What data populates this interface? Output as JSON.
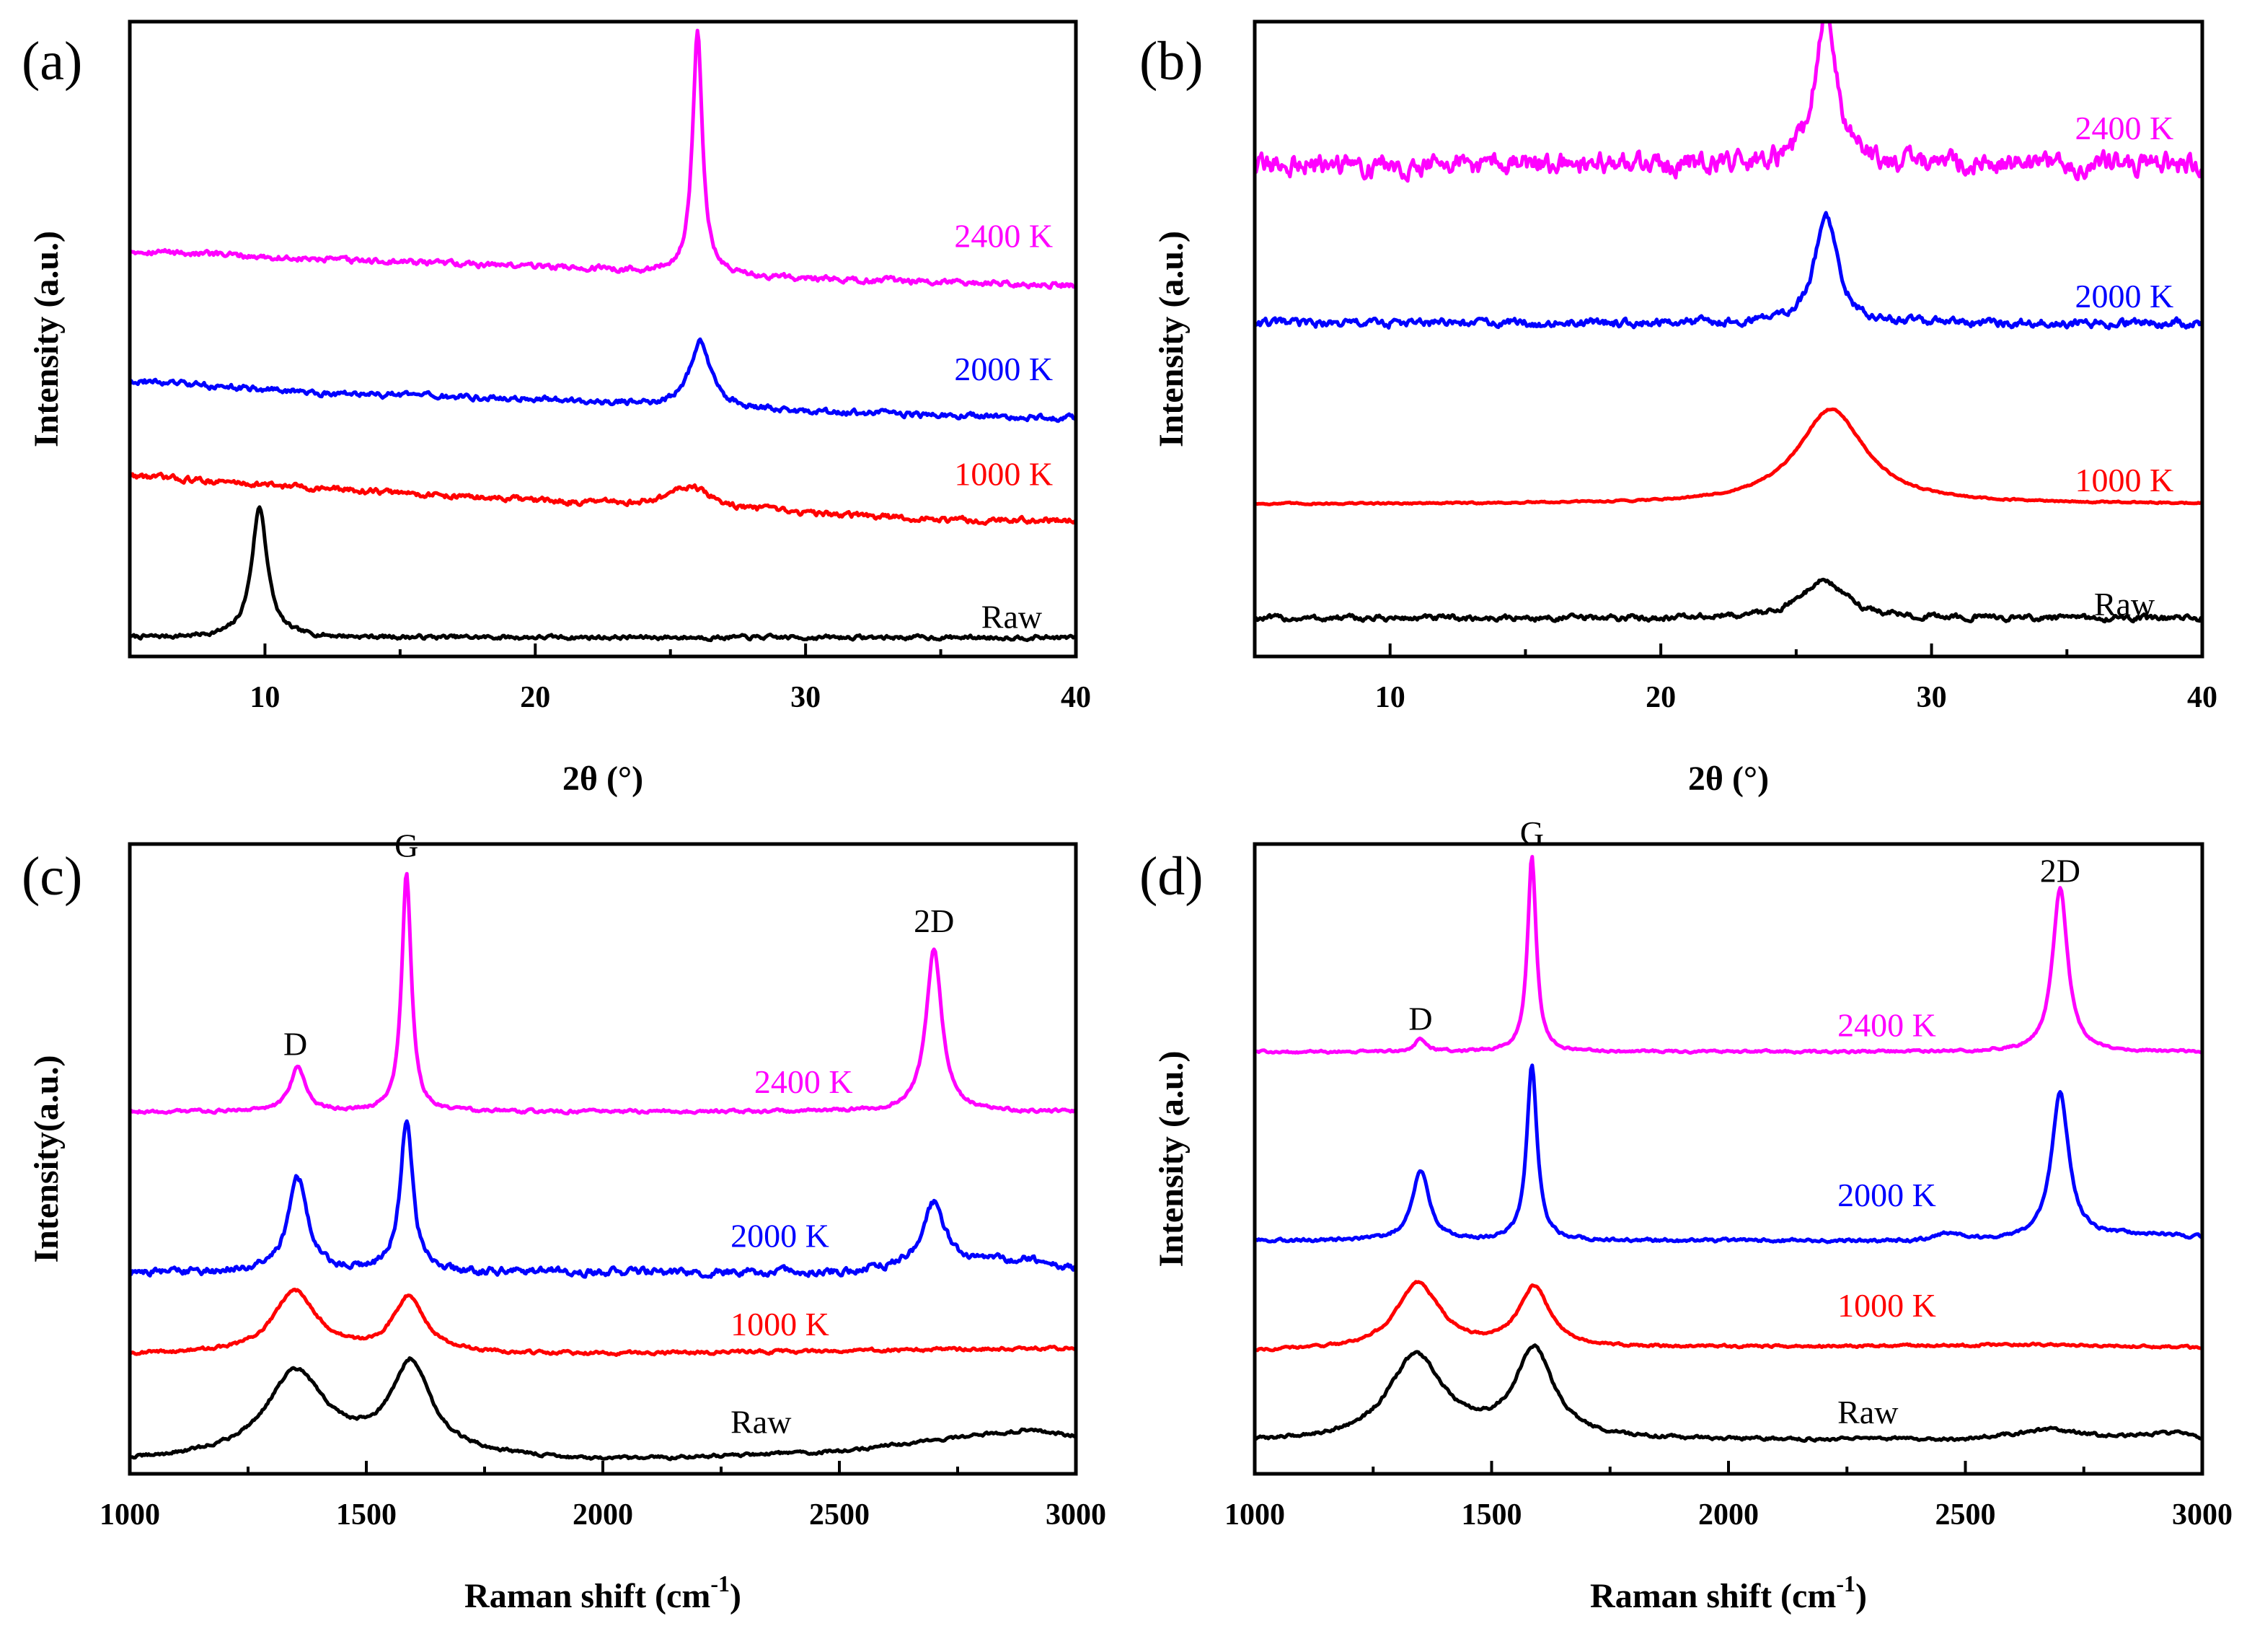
{
  "colors": {
    "Raw": "#000000",
    "1000 K": "#ff0000",
    "2000 K": "#0000ff",
    "2400 K": "#ff00ff"
  },
  "chart_data": [
    {
      "id": "a",
      "type": "line",
      "panel_label": "(a)",
      "xlabel": "2θ (°)",
      "ylabel": "Intensity (a.u.)",
      "xlim": [
        5,
        40
      ],
      "xticks": [
        10,
        20,
        30,
        40
      ],
      "ylim": [
        0,
        100
      ],
      "yticks_shown": false,
      "series": [
        {
          "name": "Raw",
          "offset": 3,
          "base": [
            [
              5,
              0
            ],
            [
              40,
              0
            ]
          ],
          "peaks": [
            {
              "x": 9.8,
              "h": 20.5,
              "w": 0.35
            }
          ],
          "noise": 0.25
        },
        {
          "name": "1000 K",
          "offset": 21.5,
          "base": [
            [
              5,
              7
            ],
            [
              12,
              5
            ],
            [
              20,
              3
            ],
            [
              30,
              1
            ],
            [
              35,
              0
            ],
            [
              40,
              0
            ]
          ],
          "peaks": [
            {
              "x": 25.7,
              "h": 3.5,
              "w": 0.9
            }
          ],
          "noise": 0.35
        },
        {
          "name": "2000 K",
          "offset": 37.5,
          "base": [
            [
              5,
              6
            ],
            [
              12,
              4
            ],
            [
              20,
              3
            ],
            [
              30,
              1
            ],
            [
              40,
              0
            ]
          ],
          "peaks": [
            {
              "x": 26.1,
              "h": 10.5,
              "w": 0.45
            }
          ],
          "noise": 0.35
        },
        {
          "name": "2400 K",
          "offset": 58.5,
          "base": [
            [
              5,
              5.5
            ],
            [
              12,
              4
            ],
            [
              20,
              3
            ],
            [
              30,
              1
            ],
            [
              40,
              0
            ]
          ],
          "peaks": [
            {
              "x": 26.0,
              "h": 38,
              "w": 0.22
            }
          ],
          "noise": 0.35
        }
      ],
      "labels": [
        {
          "series": "2400 K",
          "text": "2400 K",
          "x": 35.5,
          "y": 64.5
        },
        {
          "series": "2000 K",
          "text": "2000 K",
          "x": 35.5,
          "y": 43.5
        },
        {
          "series": "1000 K",
          "text": "1000 K",
          "x": 35.5,
          "y": 27
        },
        {
          "series": "Raw",
          "text": "Raw",
          "x": 36.5,
          "y": 4.5
        }
      ]
    },
    {
      "id": "b",
      "type": "line",
      "panel_label": "(b)",
      "xlabel": "2θ (°)",
      "ylabel": "Intensity (a.u.)",
      "xlim": [
        5,
        40
      ],
      "xticks": [
        10,
        20,
        30,
        40
      ],
      "ylim": [
        0,
        100
      ],
      "yticks_shown": false,
      "series": [
        {
          "name": "Raw",
          "offset": 6,
          "base": [
            [
              5,
              0
            ],
            [
              40,
              0
            ]
          ],
          "peaks": [
            {
              "x": 26.0,
              "h": 6,
              "w": 1.0
            }
          ],
          "noise": 0.35
        },
        {
          "name": "1000 K",
          "offset": 24,
          "base": [
            [
              5,
              0
            ],
            [
              40,
              0
            ]
          ],
          "peaks": [
            {
              "x": 26.3,
              "h": 15,
              "w": 1.5
            }
          ],
          "noise": 0.1
        },
        {
          "name": "2000 K",
          "offset": 52.5,
          "base": [
            [
              5,
              0
            ],
            [
              40,
              0
            ]
          ],
          "peaks": [
            {
              "x": 26.1,
              "h": 17,
              "w": 0.5
            }
          ],
          "noise": 0.5
        },
        {
          "name": "2400 K",
          "offset": 77.5,
          "base": [
            [
              5,
              0
            ],
            [
              40,
              0
            ]
          ],
          "peaks": [
            {
              "x": 26.1,
              "h": 25,
              "w": 0.45
            }
          ],
          "noise": 1.3
        }
      ],
      "labels": [
        {
          "series": "2400 K",
          "text": "2400 K",
          "x": 35.3,
          "y": 81.5
        },
        {
          "series": "2000 K",
          "text": "2000 K",
          "x": 35.3,
          "y": 55
        },
        {
          "series": "1000 K",
          "text": "1000 K",
          "x": 35.3,
          "y": 26
        },
        {
          "series": "Raw",
          "text": "Raw",
          "x": 36.0,
          "y": 6.5
        }
      ]
    },
    {
      "id": "c",
      "type": "line",
      "panel_label": "(c)",
      "xlabel": "Raman shift (cm",
      "xlabel_sup": "-1",
      "xlabel_end": ")",
      "ylabel": "Intensity(a.u.)",
      "xlim": [
        1000,
        3000
      ],
      "xticks": [
        1000,
        1500,
        2000,
        2500,
        3000
      ],
      "ylim": [
        0,
        100
      ],
      "yticks_shown": false,
      "series": [
        {
          "name": "Raw",
          "offset": 2,
          "base": [
            [
              1000,
              0
            ],
            [
              1500,
              1.5
            ],
            [
              2000,
              0
            ],
            [
              2500,
              1.5
            ],
            [
              2900,
              5
            ],
            [
              3000,
              4
            ]
          ],
          "peaks": [
            {
              "x": 1350,
              "h": 13,
              "w": 75
            },
            {
              "x": 1595,
              "h": 14,
              "w": 50
            }
          ],
          "noise": 0.2
        },
        {
          "name": "1000 K",
          "offset": 19,
          "base": [
            [
              1000,
              0
            ],
            [
              2000,
              0
            ],
            [
              3000,
              1
            ]
          ],
          "peaks": [
            {
              "x": 1350,
              "h": 10,
              "w": 55
            },
            {
              "x": 1590,
              "h": 9,
              "w": 40
            }
          ],
          "noise": 0.2
        },
        {
          "name": "2000 K",
          "offset": 32,
          "base": [
            [
              1000,
              0
            ],
            [
              2500,
              0
            ],
            [
              2900,
              2
            ],
            [
              3000,
              0.5
            ]
          ],
          "peaks": [
            {
              "x": 1355,
              "h": 15,
              "w": 25
            },
            {
              "x": 1585,
              "h": 24,
              "w": 16
            },
            {
              "x": 2700,
              "h": 10,
              "w": 28
            }
          ],
          "noise": 0.45
        },
        {
          "name": "2400 K",
          "offset": 57.5,
          "base": [
            [
              1000,
              0
            ],
            [
              3000,
              0
            ]
          ],
          "peaks": [
            {
              "x": 1355,
              "h": 7,
              "w": 20
            },
            {
              "x": 1585,
              "h": 38,
              "w": 12
            },
            {
              "x": 2700,
              "h": 26,
              "w": 20
            }
          ],
          "noise": 0.2
        }
      ],
      "labels": [
        {
          "series": "2400 K",
          "text": "2400 K",
          "x": 2320,
          "y": 60.5
        },
        {
          "series": "2000 K",
          "text": "2000 K",
          "x": 2270,
          "y": 36
        },
        {
          "series": "1000 K",
          "text": "1000 K",
          "x": 2270,
          "y": 22
        },
        {
          "series": "Raw",
          "text": "Raw",
          "x": 2270,
          "y": 6.5
        }
      ],
      "annotations": [
        {
          "text": "D",
          "x": 1350,
          "y": 66.5
        },
        {
          "text": "G",
          "x": 1585,
          "y": 98
        },
        {
          "text": "2D",
          "x": 2700,
          "y": 86
        }
      ]
    },
    {
      "id": "d",
      "type": "line",
      "panel_label": "(d)",
      "xlabel": "Raman shift (cm",
      "xlabel_sup": "-1",
      "xlabel_end": ")",
      "ylabel": "Intensity (a.u.)",
      "xlim": [
        1000,
        3000
      ],
      "xticks": [
        1000,
        1500,
        2000,
        2500,
        3000
      ],
      "ylim": [
        0,
        100
      ],
      "yticks_shown": false,
      "series": [
        {
          "name": "Raw",
          "offset": 5,
          "base": [
            [
              1000,
              0
            ],
            [
              2500,
              0.5
            ],
            [
              2680,
              2
            ],
            [
              2800,
              1
            ],
            [
              2950,
              1.5
            ],
            [
              3000,
              0.5
            ]
          ],
          "peaks": [
            {
              "x": 1340,
              "h": 13.5,
              "w": 70
            },
            {
              "x": 1590,
              "h": 14,
              "w": 50
            }
          ],
          "noise": 0.2
        },
        {
          "name": "1000 K",
          "offset": 19.5,
          "base": [
            [
              1000,
              0
            ],
            [
              2680,
              1
            ],
            [
              3000,
              0.5
            ]
          ],
          "peaks": [
            {
              "x": 1345,
              "h": 10.5,
              "w": 55
            },
            {
              "x": 1590,
              "h": 9.5,
              "w": 40
            }
          ],
          "noise": 0.15
        },
        {
          "name": "2000 K",
          "offset": 37,
          "base": [
            [
              1000,
              0
            ],
            [
              2400,
              0
            ],
            [
              2460,
              1
            ],
            [
              2550,
              0
            ],
            [
              2900,
              1
            ],
            [
              3000,
              0.5
            ]
          ],
          "peaks": [
            {
              "x": 1350,
              "h": 11,
              "w": 22
            },
            {
              "x": 1585,
              "h": 28,
              "w": 13
            },
            {
              "x": 2700,
              "h": 23,
              "w": 22
            }
          ],
          "noise": 0.2
        },
        {
          "name": "2400 K",
          "offset": 67,
          "base": [
            [
              1000,
              0
            ],
            [
              3000,
              0
            ]
          ],
          "peaks": [
            {
              "x": 1350,
              "h": 2,
              "w": 15
            },
            {
              "x": 1585,
              "h": 31,
              "w": 11
            },
            {
              "x": 2700,
              "h": 26,
              "w": 19
            }
          ],
          "noise": 0.15
        }
      ],
      "labels": [
        {
          "series": "2400 K",
          "text": "2400 K",
          "x": 2230,
          "y": 69.5
        },
        {
          "series": "2000 K",
          "text": "2000 K",
          "x": 2230,
          "y": 42.5
        },
        {
          "series": "1000 K",
          "text": "1000 K",
          "x": 2230,
          "y": 25
        },
        {
          "series": "Raw",
          "text": "Raw",
          "x": 2230,
          "y": 8
        }
      ],
      "annotations": [
        {
          "text": "D",
          "x": 1350,
          "y": 70.5
        },
        {
          "text": "G",
          "x": 1585,
          "y": 100
        },
        {
          "text": "2D",
          "x": 2700,
          "y": 94
        }
      ]
    }
  ]
}
